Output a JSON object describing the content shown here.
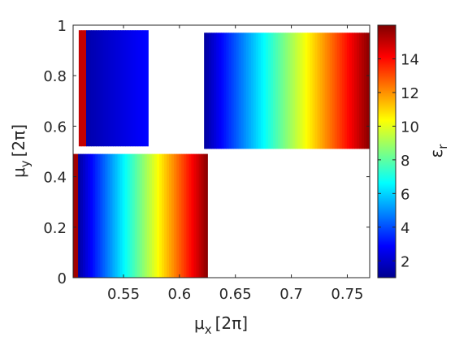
{
  "chart_data": {
    "type": "scatter",
    "title": "",
    "xlabel": {
      "symbol": "μ",
      "sub": "x",
      "unit": "[2π]"
    },
    "ylabel": {
      "symbol": "μ",
      "sub": "y",
      "unit": "[2π]"
    },
    "xlim": [
      0.505,
      0.77
    ],
    "ylim": [
      0,
      1
    ],
    "xticks": [
      {
        "value": 0.55,
        "label": "0.55"
      },
      {
        "value": 0.6,
        "label": "0.6"
      },
      {
        "value": 0.65,
        "label": "0.65"
      },
      {
        "value": 0.7,
        "label": "0.7"
      },
      {
        "value": 0.75,
        "label": "0.75"
      }
    ],
    "yticks": [
      {
        "value": 0,
        "label": "0"
      },
      {
        "value": 0.2,
        "label": "0.2"
      },
      {
        "value": 0.4,
        "label": "0.4"
      },
      {
        "value": 0.6,
        "label": "0.6"
      },
      {
        "value": 0.8,
        "label": "0.8"
      },
      {
        "value": 1,
        "label": "1"
      }
    ],
    "grid": false,
    "colormap": "jet",
    "colorbar": {
      "label": {
        "symbol": "ε",
        "sub": "r"
      },
      "range": [
        1,
        16
      ],
      "ticks": [
        {
          "value": 2,
          "label": "2"
        },
        {
          "value": 4,
          "label": "4"
        },
        {
          "value": 6,
          "label": "6"
        },
        {
          "value": 8,
          "label": "8"
        },
        {
          "value": 10,
          "label": "10"
        },
        {
          "value": 12,
          "label": "12"
        },
        {
          "value": 14,
          "label": "14"
        }
      ]
    },
    "regions": [
      {
        "x_start": 0.505,
        "x_end": 0.625,
        "y_start": 0.0,
        "y_end": 0.49,
        "value_at_start": 1.0,
        "value_at_end": 16.0,
        "edge_value": 15.5,
        "edge_width": 0.004
      },
      {
        "x_start": 0.51,
        "x_end": 0.572,
        "y_start": 0.52,
        "y_end": 0.98,
        "value_at_start": 1.5,
        "value_at_end": 3.0,
        "edge_value": 15.0,
        "edge_width": 0.006
      },
      {
        "x_start": 0.622,
        "x_end": 0.77,
        "y_start": 0.51,
        "y_end": 0.97,
        "value_at_start": 1.5,
        "value_at_end": 16.0,
        "edge_value": null,
        "edge_width": 0
      }
    ]
  }
}
